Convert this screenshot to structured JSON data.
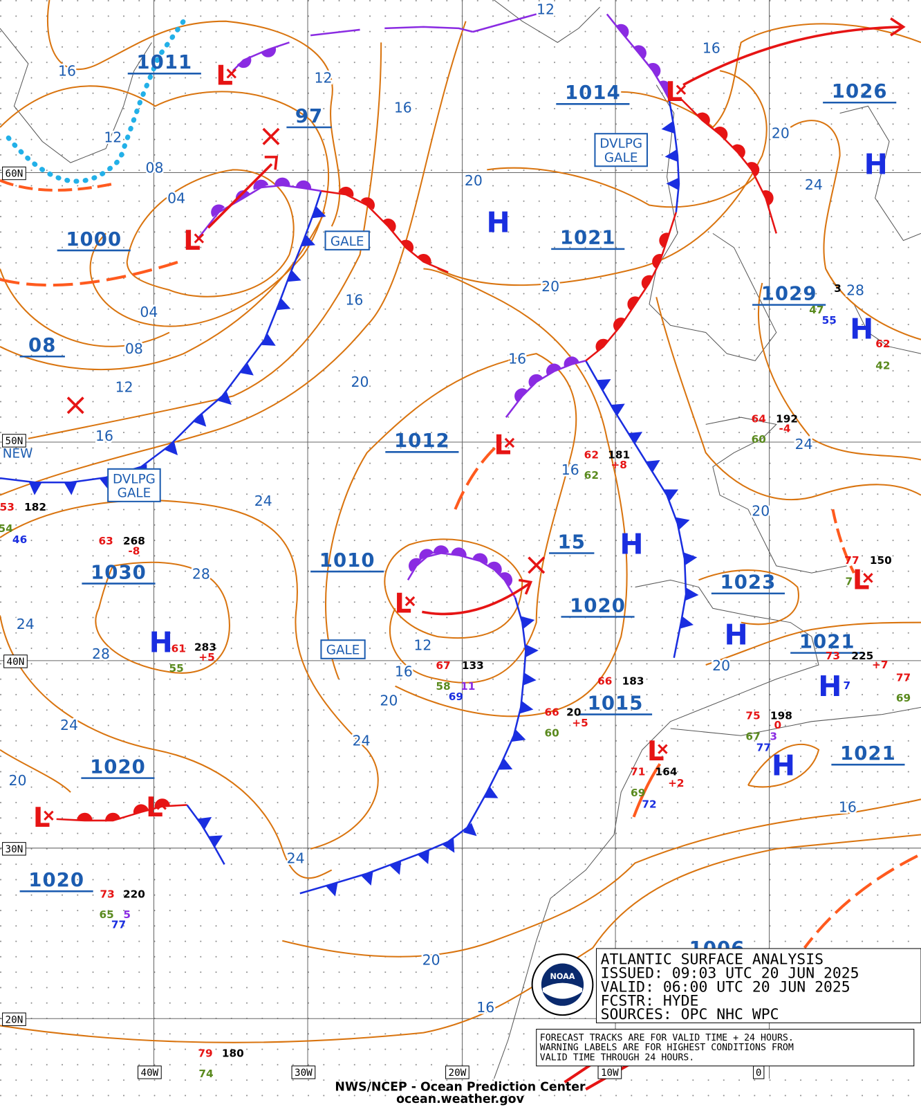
{
  "title_box": [
    "ATLANTIC SURFACE ANALYSIS",
    "ISSUED:  09:03 UTC 20 JUN 2025",
    "VALID:  06:00 UTC 20 JUN 2025",
    "FCSTR:   HYDE",
    "SOURCES:  OPC NHC WPC"
  ],
  "note": [
    "FORECAST TRACKS ARE FOR VALID TIME + 24 HOURS.",
    "WARNING LABELS ARE FOR HIGHEST CONDITIONS FROM",
    "VALID TIME THROUGH 24 HOURS."
  ],
  "footer": [
    "NWS/NCEP - Ocean Prediction Center",
    "ocean.weather.gov"
  ],
  "grid_labels": [
    "60N",
    "50N",
    "40N",
    "30N",
    "20N",
    "40W",
    "30W",
    "20W",
    "10W",
    "0"
  ],
  "pressure_labels": [
    "1011",
    "97",
    "1014",
    "1026",
    "1000",
    "1021",
    "1029",
    "08",
    "1012",
    "1030",
    "1010",
    "15",
    "1020",
    "1023",
    "1021",
    "1015",
    "1021",
    "1020",
    "1020",
    "1006"
  ],
  "isobar_labels": [
    "16",
    "12",
    "16",
    "12",
    "16",
    "12",
    "08",
    "04",
    "20",
    "20",
    "24",
    "20",
    "16",
    "28",
    "04",
    "08",
    "16",
    "20",
    "12",
    "16",
    "24",
    "16",
    "24",
    "20",
    "28",
    "24",
    "12",
    "28",
    "20",
    "16",
    "20",
    "24",
    "24",
    "20",
    "16",
    "24",
    "20",
    "16"
  ],
  "highs": [
    "H",
    "H",
    "H",
    "H",
    "H",
    "H",
    "H",
    "H"
  ],
  "lows": [
    "L",
    "L",
    "L",
    "L",
    "L",
    "L",
    "L",
    "L",
    "L"
  ],
  "warnings": [
    [
      "GALE"
    ],
    [
      "DVLPG",
      "GALE"
    ],
    [
      "DVLPG",
      "GALE"
    ],
    [
      "GALE"
    ],
    [
      "NEW"
    ]
  ],
  "stations": [
    {
      "text": "53",
      "color": "#e61414"
    },
    {
      "text": "182",
      "color": "#000"
    },
    {
      "text": "54",
      "color": "#5a8a1e"
    },
    {
      "text": "46",
      "color": "#1a2ee0"
    },
    {
      "text": "63",
      "color": "#e61414"
    },
    {
      "text": "268",
      "color": "#000"
    },
    {
      "text": "-8",
      "color": "#e61414"
    },
    {
      "text": "61",
      "color": "#e61414"
    },
    {
      "text": "283",
      "color": "#000"
    },
    {
      "text": "55",
      "color": "#5a8a1e"
    },
    {
      "text": "+5",
      "color": "#e61414"
    },
    {
      "text": "67",
      "color": "#e61414"
    },
    {
      "text": "133",
      "color": "#000"
    },
    {
      "text": "58",
      "color": "#5a8a1e"
    },
    {
      "text": "11",
      "color": "#8a2be2"
    },
    {
      "text": "69",
      "color": "#1a2ee0"
    },
    {
      "text": "62",
      "color": "#e61414"
    },
    {
      "text": "181",
      "color": "#000"
    },
    {
      "text": "62",
      "color": "#5a8a1e"
    },
    {
      "text": "+8",
      "color": "#e61414"
    },
    {
      "text": "64",
      "color": "#e61414"
    },
    {
      "text": "192",
      "color": "#000"
    },
    {
      "text": "60",
      "color": "#5a8a1e"
    },
    {
      "text": "-4",
      "color": "#e61414"
    },
    {
      "text": "66",
      "color": "#e61414"
    },
    {
      "text": "183",
      "color": "#000"
    },
    {
      "text": "66",
      "color": "#e61414"
    },
    {
      "text": "20",
      "color": "#000"
    },
    {
      "text": "60",
      "color": "#5a8a1e"
    },
    {
      "text": "+5",
      "color": "#e61414"
    },
    {
      "text": "75",
      "color": "#e61414"
    },
    {
      "text": "198",
      "color": "#000"
    },
    {
      "text": "67",
      "color": "#5a8a1e"
    },
    {
      "text": "77",
      "color": "#1a2ee0"
    },
    {
      "text": "3",
      "color": "#8a2be2"
    },
    {
      "text": "0",
      "color": "#e61414"
    },
    {
      "text": "71",
      "color": "#e61414"
    },
    {
      "text": "164",
      "color": "#000"
    },
    {
      "text": "69",
      "color": "#5a8a1e"
    },
    {
      "text": "72",
      "color": "#1a2ee0"
    },
    {
      "text": "+2",
      "color": "#e61414"
    },
    {
      "text": "73",
      "color": "#e61414"
    },
    {
      "text": "220",
      "color": "#000"
    },
    {
      "text": "65",
      "color": "#5a8a1e"
    },
    {
      "text": "77",
      "color": "#1a2ee0"
    },
    {
      "text": "5",
      "color": "#8a2be2"
    },
    {
      "text": "79",
      "color": "#e61414"
    },
    {
      "text": "180",
      "color": "#000"
    },
    {
      "text": "74",
      "color": "#5a8a1e"
    },
    {
      "text": "62",
      "color": "#e61414"
    },
    {
      "text": "42",
      "color": "#5a8a1e"
    },
    {
      "text": "3",
      "color": "#000"
    },
    {
      "text": "55",
      "color": "#1a2ee0"
    },
    {
      "text": "47",
      "color": "#5a8a1e"
    },
    {
      "text": "77",
      "color": "#e61414"
    },
    {
      "text": "150",
      "color": "#000"
    },
    {
      "text": "7",
      "color": "#5a8a1e"
    },
    {
      "text": "73",
      "color": "#e61414"
    },
    {
      "text": "225",
      "color": "#000"
    },
    {
      "text": "7",
      "color": "#1a2ee0"
    },
    {
      "text": "+7",
      "color": "#e61414"
    },
    {
      "text": "77",
      "color": "#e61414"
    },
    {
      "text": "69",
      "color": "#5a8a1e"
    }
  ]
}
